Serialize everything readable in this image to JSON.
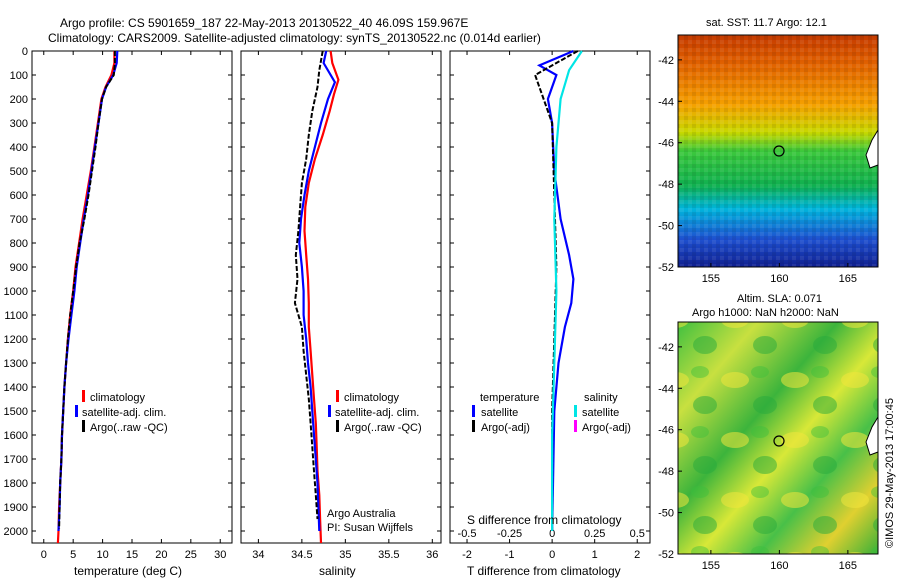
{
  "header": {
    "title_line1": "Argo profile: CS 5901659_187 22-May-2013 20130522_40 46.09S 159.967E",
    "title_line2": "Climatology: CARS2009. Satellite-adjusted climatology: synTS_20130522.nc (0.014d earlier)"
  },
  "colors": {
    "climatology": "#ff0000",
    "satellite": "#0000ff",
    "argo": "#000000",
    "salinity_satellite": "#00e5e5",
    "salinity_argo": "#ff00ff"
  },
  "depth_ticks": [
    "0",
    "100",
    "200",
    "300",
    "400",
    "500",
    "600",
    "700",
    "800",
    "900",
    "1000",
    "1100",
    "1200",
    "1300",
    "1400",
    "1500",
    "1600",
    "1700",
    "1800",
    "1900",
    "2000"
  ],
  "legend_profile": {
    "climatology": "climatology",
    "satellite": "satellite-adj. clim.",
    "argo": "Argo(..raw -QC)"
  },
  "legend_diff": {
    "temp_header": "temperature",
    "sal_header": "salinity",
    "temp_satellite": "satellite",
    "temp_argo": "Argo(-adj)",
    "sal_satellite": "satellite",
    "sal_argo": "Argo(-adj)"
  },
  "credit": {
    "line1": "Argo Australia",
    "line2": "PI: Susan Wijffels"
  },
  "side_stamp": "©IMOS 29-May-2013 17:00:45",
  "map1": {
    "title": "sat. SST: 11.7 Argo: 12.1",
    "yticks": [
      "-42",
      "-44",
      "-46",
      "-48",
      "-50",
      "-52"
    ],
    "xticks": [
      "155",
      "160",
      "165"
    ]
  },
  "map2": {
    "title_line1": "Altim. SLA: 0.071",
    "title_line2": "Argo h1000: NaN h2000: NaN",
    "yticks": [
      "-42",
      "-44",
      "-46",
      "-48",
      "-50",
      "-52"
    ],
    "xticks": [
      "155",
      "160",
      "165"
    ]
  },
  "chart_data": [
    {
      "type": "line",
      "xlabel": "temperature (deg C)",
      "ylabel": "",
      "xlim": [
        -2,
        32
      ],
      "ylim": [
        2050,
        0
      ],
      "xticks": [
        "0",
        "5",
        "10",
        "15",
        "20",
        "25",
        "30"
      ],
      "series": [
        {
          "name": "climatology",
          "points": [
            [
              12.0,
              0
            ],
            [
              12.0,
              50
            ],
            [
              11.5,
              100
            ],
            [
              10.5,
              150
            ],
            [
              9.8,
              200
            ],
            [
              9.2,
              300
            ],
            [
              8.6,
              400
            ],
            [
              8.0,
              500
            ],
            [
              7.3,
              600
            ],
            [
              6.6,
              700
            ],
            [
              6.0,
              800
            ],
            [
              5.4,
              900
            ],
            [
              5.0,
              1000
            ],
            [
              4.5,
              1100
            ],
            [
              4.1,
              1200
            ],
            [
              3.8,
              1300
            ],
            [
              3.5,
              1400
            ],
            [
              3.3,
              1500
            ],
            [
              3.1,
              1600
            ],
            [
              3.0,
              1700
            ],
            [
              2.8,
              1800
            ],
            [
              2.6,
              1900
            ],
            [
              2.5,
              2000
            ],
            [
              2.4,
              2050
            ]
          ]
        },
        {
          "name": "satellite-adj. clim.",
          "points": [
            [
              12.5,
              0
            ],
            [
              12.4,
              50
            ],
            [
              11.8,
              100
            ],
            [
              10.6,
              150
            ],
            [
              9.9,
              200
            ],
            [
              9.3,
              300
            ],
            [
              8.7,
              400
            ],
            [
              8.1,
              500
            ],
            [
              7.5,
              600
            ],
            [
              6.8,
              700
            ],
            [
              6.2,
              800
            ],
            [
              5.6,
              900
            ],
            [
              5.2,
              1000
            ],
            [
              4.7,
              1100
            ],
            [
              4.2,
              1200
            ],
            [
              3.8,
              1300
            ],
            [
              3.5,
              1400
            ],
            [
              3.3,
              1500
            ],
            [
              3.1,
              1600
            ],
            [
              3.0,
              1700
            ],
            [
              2.8,
              1800
            ],
            [
              2.7,
              1900
            ],
            [
              2.5,
              2000
            ]
          ]
        },
        {
          "name": "Argo(..raw -QC)",
          "points": [
            [
              12.1,
              0
            ],
            [
              12.1,
              50
            ],
            [
              11.9,
              100
            ],
            [
              10.6,
              150
            ],
            [
              9.9,
              200
            ],
            [
              9.3,
              300
            ],
            [
              8.8,
              400
            ],
            [
              8.2,
              500
            ],
            [
              7.6,
              600
            ],
            [
              6.9,
              700
            ],
            [
              6.1,
              800
            ],
            [
              5.5,
              900
            ],
            [
              5.0,
              1000
            ],
            [
              4.5,
              1100
            ],
            [
              4.1,
              1200
            ],
            [
              3.8,
              1300
            ],
            [
              3.5,
              1400
            ],
            [
              3.3,
              1500
            ],
            [
              3.1,
              1600
            ],
            [
              3.0,
              1700
            ],
            [
              2.8,
              1800
            ],
            [
              2.7,
              1900
            ],
            [
              2.6,
              1990
            ]
          ]
        }
      ]
    },
    {
      "type": "line",
      "xlabel": "salinity",
      "ylabel": "",
      "xlim": [
        33.8,
        36.1
      ],
      "ylim": [
        2050,
        0
      ],
      "xticks": [
        "34",
        "34.5",
        "35",
        "35.5",
        "36"
      ],
      "series": [
        {
          "name": "climatology",
          "points": [
            [
              34.83,
              0
            ],
            [
              34.85,
              50
            ],
            [
              34.92,
              120
            ],
            [
              34.87,
              180
            ],
            [
              34.82,
              250
            ],
            [
              34.74,
              350
            ],
            [
              34.65,
              450
            ],
            [
              34.58,
              550
            ],
            [
              34.54,
              650
            ],
            [
              34.53,
              750
            ],
            [
              34.55,
              850
            ],
            [
              34.57,
              950
            ],
            [
              34.58,
              1050
            ],
            [
              34.58,
              1150
            ],
            [
              34.6,
              1250
            ],
            [
              34.62,
              1350
            ],
            [
              34.64,
              1450
            ],
            [
              34.66,
              1550
            ],
            [
              34.67,
              1650
            ],
            [
              34.68,
              1750
            ],
            [
              34.7,
              1850
            ],
            [
              34.71,
              1950
            ],
            [
              34.72,
              2050
            ]
          ]
        },
        {
          "name": "satellite-adj. clim.",
          "points": [
            [
              34.78,
              0
            ],
            [
              34.75,
              50
            ],
            [
              34.88,
              130
            ],
            [
              34.8,
              200
            ],
            [
              34.72,
              300
            ],
            [
              34.65,
              400
            ],
            [
              34.58,
              500
            ],
            [
              34.53,
              600
            ],
            [
              34.49,
              700
            ],
            [
              34.47,
              800
            ],
            [
              34.5,
              900
            ],
            [
              34.52,
              1000
            ],
            [
              34.52,
              1100
            ],
            [
              34.55,
              1200
            ],
            [
              34.57,
              1300
            ],
            [
              34.6,
              1400
            ],
            [
              34.62,
              1500
            ],
            [
              34.64,
              1600
            ],
            [
              34.66,
              1700
            ],
            [
              34.68,
              1800
            ],
            [
              34.69,
              1900
            ],
            [
              34.7,
              2000
            ]
          ]
        },
        {
          "name": "Argo(..raw -QC)",
          "points": [
            [
              34.74,
              0
            ],
            [
              34.7,
              80
            ],
            [
              34.68,
              150
            ],
            [
              34.62,
              250
            ],
            [
              34.58,
              350
            ],
            [
              34.55,
              450
            ],
            [
              34.5,
              550
            ],
            [
              34.48,
              650
            ],
            [
              34.46,
              750
            ],
            [
              34.43,
              850
            ],
            [
              34.45,
              950
            ],
            [
              34.42,
              1050
            ],
            [
              34.5,
              1150
            ],
            [
              34.52,
              1250
            ],
            [
              34.55,
              1350
            ],
            [
              34.58,
              1450
            ],
            [
              34.6,
              1550
            ],
            [
              34.62,
              1650
            ],
            [
              34.64,
              1750
            ],
            [
              34.66,
              1850
            ],
            [
              34.68,
              1950
            ]
          ]
        }
      ]
    },
    {
      "type": "line",
      "xlabel": "T difference from climatology",
      "xlabel2": "S difference from climatology",
      "ylabel": "",
      "xlim": [
        -2.4,
        2.3
      ],
      "ylim": [
        2050,
        0
      ],
      "xticks": [
        "-2",
        "-1",
        "0",
        "1",
        "2"
      ],
      "xticks_top": [
        "-0.5",
        "-0.25",
        "0",
        "0.25",
        "0.5"
      ],
      "series": [
        {
          "name": "temperature satellite",
          "points": [
            [
              0.5,
              0
            ],
            [
              -0.3,
              60
            ],
            [
              0.1,
              100
            ],
            [
              -0.1,
              200
            ],
            [
              0.0,
              300
            ],
            [
              0.05,
              500
            ],
            [
              0.2,
              700
            ],
            [
              0.4,
              850
            ],
            [
              0.5,
              950
            ],
            [
              0.45,
              1050
            ],
            [
              0.3,
              1150
            ],
            [
              0.15,
              1300
            ],
            [
              0.05,
              1500
            ],
            [
              0.02,
              1800
            ],
            [
              0.0,
              2000
            ]
          ]
        },
        {
          "name": "temperature Argo(-adj)",
          "points": [
            [
              0.6,
              0
            ],
            [
              -0.4,
              100
            ],
            [
              -0.2,
              200
            ],
            [
              0.0,
              300
            ],
            [
              0.05,
              600
            ],
            [
              0.1,
              900
            ],
            [
              0.05,
              1200
            ],
            [
              0.0,
              1500
            ],
            [
              0.0,
              2000
            ]
          ]
        },
        {
          "name": "salinity satellite",
          "points": [
            [
              0.7,
              0
            ],
            [
              0.4,
              80
            ],
            [
              0.2,
              200
            ],
            [
              0.1,
              400
            ],
            [
              0.05,
              700
            ],
            [
              0.1,
              1000
            ],
            [
              0.05,
              1300
            ],
            [
              0.0,
              1600
            ],
            [
              0.0,
              2000
            ]
          ]
        },
        {
          "name": "salinity Argo(-adj)",
          "points": []
        }
      ]
    }
  ]
}
